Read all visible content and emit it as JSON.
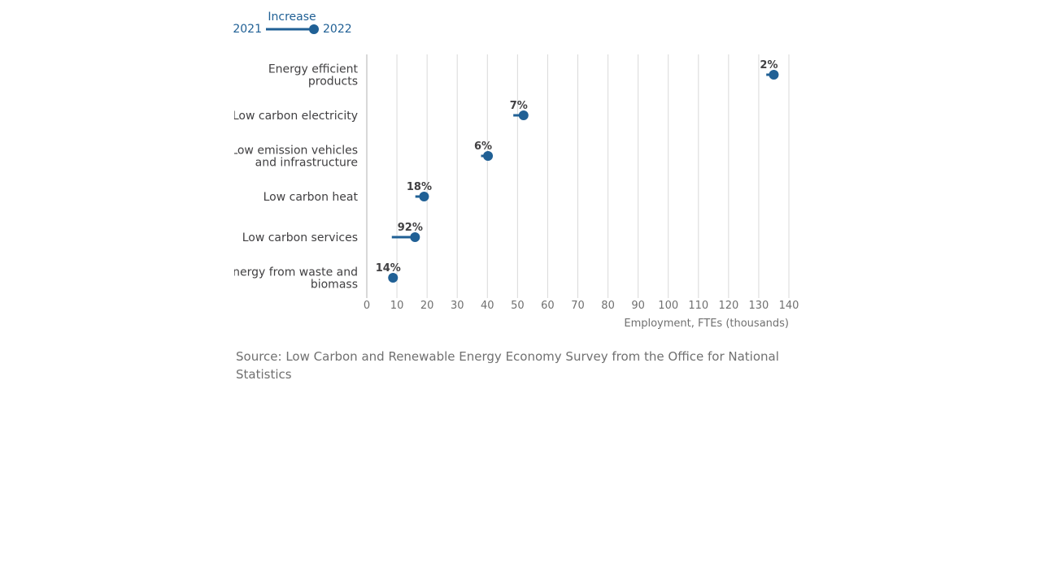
{
  "legend": {
    "title": "Increase",
    "start_label": "2021",
    "end_label": "2022"
  },
  "source_note": "Source: Low Carbon and Renewable Energy Economy Survey from the Office for National Statistics",
  "colors": {
    "series": "#206095",
    "grid": "#d9d9d9",
    "axis_text": "#707070",
    "category_text": "#414042",
    "change_label_text": "#414042"
  },
  "chart_data": {
    "type": "dumbbell",
    "orientation": "horizontal",
    "xlabel": "Employment, FTEs (thousands)",
    "xlim": [
      0,
      140
    ],
    "x_ticks": [
      0,
      10,
      20,
      30,
      40,
      50,
      60,
      70,
      80,
      90,
      100,
      110,
      120,
      130,
      140
    ],
    "grid": true,
    "legend_position": "top-left",
    "categories": [
      {
        "label_lines": [
          "Energy efficient",
          "products"
        ],
        "start_2021": 132.5,
        "end_2022": 135.0,
        "change_label": "2%"
      },
      {
        "label_lines": [
          "Low carbon electricity"
        ],
        "start_2021": 48.6,
        "end_2022": 52.0,
        "change_label": "7%"
      },
      {
        "label_lines": [
          "Low emission vehicles",
          "and infrastructure"
        ],
        "start_2021": 37.9,
        "end_2022": 40.2,
        "change_label": "6%"
      },
      {
        "label_lines": [
          "Low carbon heat"
        ],
        "start_2021": 16.1,
        "end_2022": 19.0,
        "change_label": "18%"
      },
      {
        "label_lines": [
          "Low carbon services"
        ],
        "start_2021": 8.3,
        "end_2022": 16.0,
        "change_label": "92%"
      },
      {
        "label_lines": [
          "Energy from waste and",
          "biomass"
        ],
        "start_2021": 7.6,
        "end_2022": 8.7,
        "change_label": "14%"
      }
    ]
  }
}
